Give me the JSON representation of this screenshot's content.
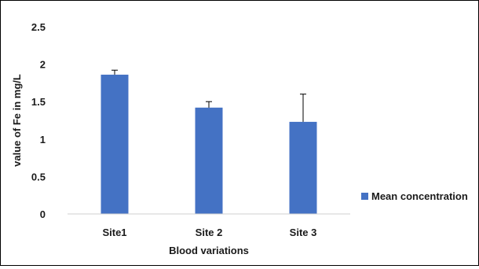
{
  "chart_data": {
    "type": "bar",
    "categories": [
      "Site1",
      "Site 2",
      "Site 3"
    ],
    "series": [
      {
        "name": "Mean concentration",
        "values": [
          1.86,
          1.42,
          1.23
        ],
        "error_upper": [
          0.06,
          0.08,
          0.37
        ],
        "color": "#4472C4"
      }
    ],
    "title": "",
    "xlabel": "Blood variations",
    "ylabel": "value of Fe in mg/L",
    "ylim": [
      0,
      2.5
    ],
    "yticks": [
      "0",
      "0.5",
      "1",
      "1.5",
      "2",
      "2.5"
    ],
    "grid": false,
    "legend_position": "right"
  }
}
